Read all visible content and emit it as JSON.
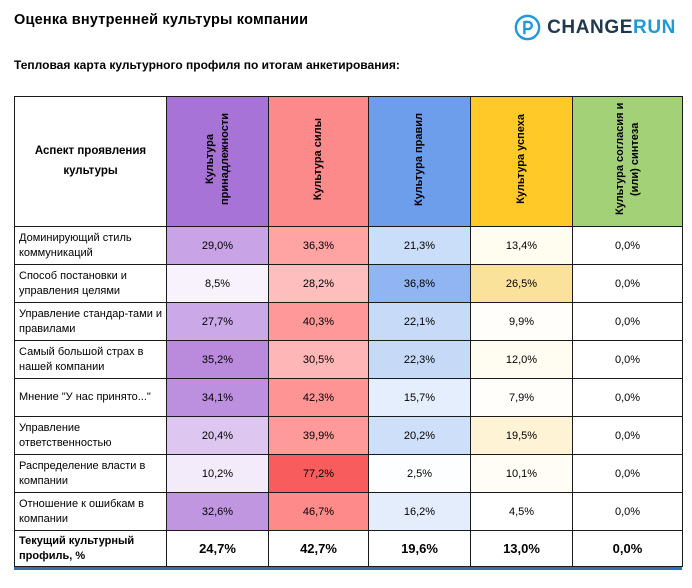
{
  "page": {
    "title": "Оценка внутренней культуры компании",
    "subtitle": "Тепловая карта культурного профиля по итогам анкетирования:"
  },
  "logo": {
    "icon": "p-circle-icon",
    "text_primary": "CHANGE",
    "text_secondary": "RUN",
    "color_primary": "#21374D",
    "color_secondary": "#2199D6"
  },
  "table": {
    "corner_header": "Аспект проявления культуры",
    "columns": [
      {
        "label": "Культура принадлежности",
        "header_bg": "#A873D6"
      },
      {
        "label": "Культура силы",
        "header_bg": "#FC8A8A"
      },
      {
        "label": "Культура правил",
        "header_bg": "#6D9EEB"
      },
      {
        "label": "Культура успеха",
        "header_bg": "#FFC928"
      },
      {
        "label": "Культура согласия и (или) синтеза",
        "header_bg": "#A3D177"
      }
    ],
    "rows": [
      {
        "label": "Доминирующий стиль коммуникаций",
        "cells": [
          {
            "text": "29,0%",
            "bg": "#C8A3E5"
          },
          {
            "text": "36,3%",
            "bg": "#FFA3A3"
          },
          {
            "text": "21,3%",
            "bg": "#CADDF9"
          },
          {
            "text": "13,4%",
            "bg": "#FFFCF0"
          },
          {
            "text": "0,0%",
            "bg": "#FFFFFF"
          }
        ]
      },
      {
        "label": "Способ постановки и управления целями",
        "cells": [
          {
            "text": "8,5%",
            "bg": "#F7F2FB"
          },
          {
            "text": "28,2%",
            "bg": "#FFBEBE"
          },
          {
            "text": "36,8%",
            "bg": "#90B5F2"
          },
          {
            "text": "26,5%",
            "bg": "#FBE29B"
          },
          {
            "text": "0,0%",
            "bg": "#FFFFFF"
          }
        ]
      },
      {
        "label": "Управление стандар-тами и правилами",
        "cells": [
          {
            "text": "27,7%",
            "bg": "#CBA8E7"
          },
          {
            "text": "40,3%",
            "bg": "#FF9999"
          },
          {
            "text": "22,1%",
            "bg": "#C7DBF8"
          },
          {
            "text": "9,9%",
            "bg": "#FFFEFA"
          },
          {
            "text": "0,0%",
            "bg": "#FFFFFF"
          }
        ]
      },
      {
        "label": "Самый большой страх в нашей компании",
        "cells": [
          {
            "text": "35,2%",
            "bg": "#BA8BDD"
          },
          {
            "text": "30,5%",
            "bg": "#FFB6B6"
          },
          {
            "text": "22,3%",
            "bg": "#C6DAF8"
          },
          {
            "text": "12,0%",
            "bg": "#FFFCF2"
          },
          {
            "text": "0,0%",
            "bg": "#FFFFFF"
          }
        ]
      },
      {
        "label": "Мнение \"У нас принято...\"",
        "cells": [
          {
            "text": "34,1%",
            "bg": "#BD90DF"
          },
          {
            "text": "42,3%",
            "bg": "#FF9494"
          },
          {
            "text": "15,7%",
            "bg": "#E5EEFC"
          },
          {
            "text": "7,9%",
            "bg": "#FFFEFB"
          },
          {
            "text": "0,0%",
            "bg": "#FFFFFF"
          }
        ]
      },
      {
        "label": "Управление ответственностью",
        "cells": [
          {
            "text": "20,4%",
            "bg": "#DDC7F0"
          },
          {
            "text": "39,9%",
            "bg": "#FF9A9A"
          },
          {
            "text": "20,2%",
            "bg": "#CEDFF9"
          },
          {
            "text": "19,5%",
            "bg": "#FEF3D5"
          },
          {
            "text": "0,0%",
            "bg": "#FFFFFF"
          }
        ]
      },
      {
        "label": "Распределение власти в компании",
        "cells": [
          {
            "text": "10,2%",
            "bg": "#F3EBF9"
          },
          {
            "text": "77,2%",
            "bg": "#F95C5C"
          },
          {
            "text": "2,5%",
            "bg": "#FDFEFF"
          },
          {
            "text": "10,1%",
            "bg": "#FFFDF6"
          },
          {
            "text": "0,0%",
            "bg": "#FFFFFF"
          }
        ]
      },
      {
        "label": "Отношение к ошибкам в компании",
        "cells": [
          {
            "text": "32,6%",
            "bg": "#C096E1"
          },
          {
            "text": "46,7%",
            "bg": "#FF8A8A"
          },
          {
            "text": "16,2%",
            "bg": "#E3EDFB"
          },
          {
            "text": "4,5%",
            "bg": "#FFFFFF"
          },
          {
            "text": "0,0%",
            "bg": "#FFFFFF"
          }
        ]
      }
    ],
    "total": {
      "label": "Текущий культурный профиль, %",
      "cells": [
        {
          "text": "24,7%",
          "bg": "#FFFFFF"
        },
        {
          "text": "42,7%",
          "bg": "#FFFFFF"
        },
        {
          "text": "19,6%",
          "bg": "#FFFFFF"
        },
        {
          "text": "13,0%",
          "bg": "#FFFFFF"
        },
        {
          "text": "0,0%",
          "bg": "#FFFFFF"
        }
      ]
    }
  },
  "chart_data": {
    "type": "heatmap",
    "title": "Тепловая карта культурного профиля по итогам анкетирования",
    "unit": "%",
    "row_header": "Аспект проявления культуры",
    "columns": [
      "Культура принадлежности",
      "Культура силы",
      "Культура правил",
      "Культура успеха",
      "Культура согласия и (или) синтеза"
    ],
    "rows": [
      "Доминирующий стиль коммуникаций",
      "Способ постановки и управления целями",
      "Управление стандар-тами и правилами",
      "Самый большой страх в нашей компании",
      "Мнение \"У нас принято...\"",
      "Управление ответственностью",
      "Распределение власти в компании",
      "Отношение к ошибкам в компании"
    ],
    "values": [
      [
        29.0,
        36.3,
        21.3,
        13.4,
        0.0
      ],
      [
        8.5,
        28.2,
        36.8,
        26.5,
        0.0
      ],
      [
        27.7,
        40.3,
        22.1,
        9.9,
        0.0
      ],
      [
        35.2,
        30.5,
        22.3,
        12.0,
        0.0
      ],
      [
        34.1,
        42.3,
        15.7,
        7.9,
        0.0
      ],
      [
        20.4,
        39.9,
        20.2,
        19.5,
        0.0
      ],
      [
        10.2,
        77.2,
        2.5,
        10.1,
        0.0
      ],
      [
        32.6,
        46.7,
        16.2,
        4.5,
        0.0
      ]
    ],
    "total_row": {
      "label": "Текущий культурный профиль, %",
      "values": [
        24.7,
        42.7,
        19.6,
        13.0,
        0.0
      ]
    },
    "column_colors": [
      "#A873D6",
      "#FC8A8A",
      "#6D9EEB",
      "#FFC928",
      "#A3D177"
    ],
    "legend_position": "none",
    "grid": true
  },
  "footer": {
    "accent_line_color": "#2E74B5"
  }
}
